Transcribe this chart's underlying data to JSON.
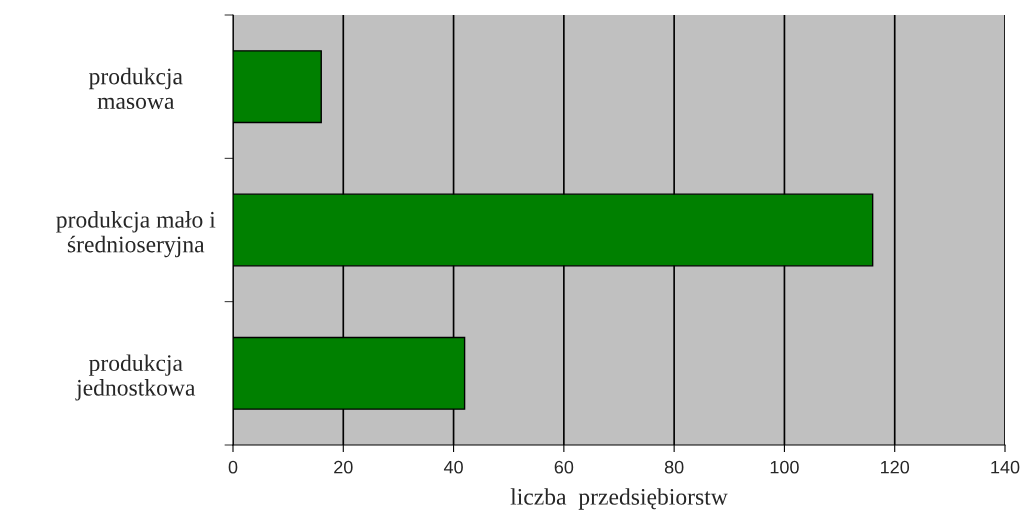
{
  "chart_data": {
    "type": "bar",
    "orientation": "horizontal",
    "xlabel": "liczba  przedsiębiorstw",
    "categories": [
      "produkcja\nmasowa",
      "produkcja mało i\nśrednioseryjna",
      "produkcja\njednostkowa"
    ],
    "values": [
      16,
      116,
      42
    ],
    "color": "#008000",
    "xlim": [
      0,
      140
    ],
    "xticks": [
      0,
      20,
      40,
      60,
      80,
      100,
      120,
      140
    ],
    "grid": "x",
    "legend": false
  }
}
